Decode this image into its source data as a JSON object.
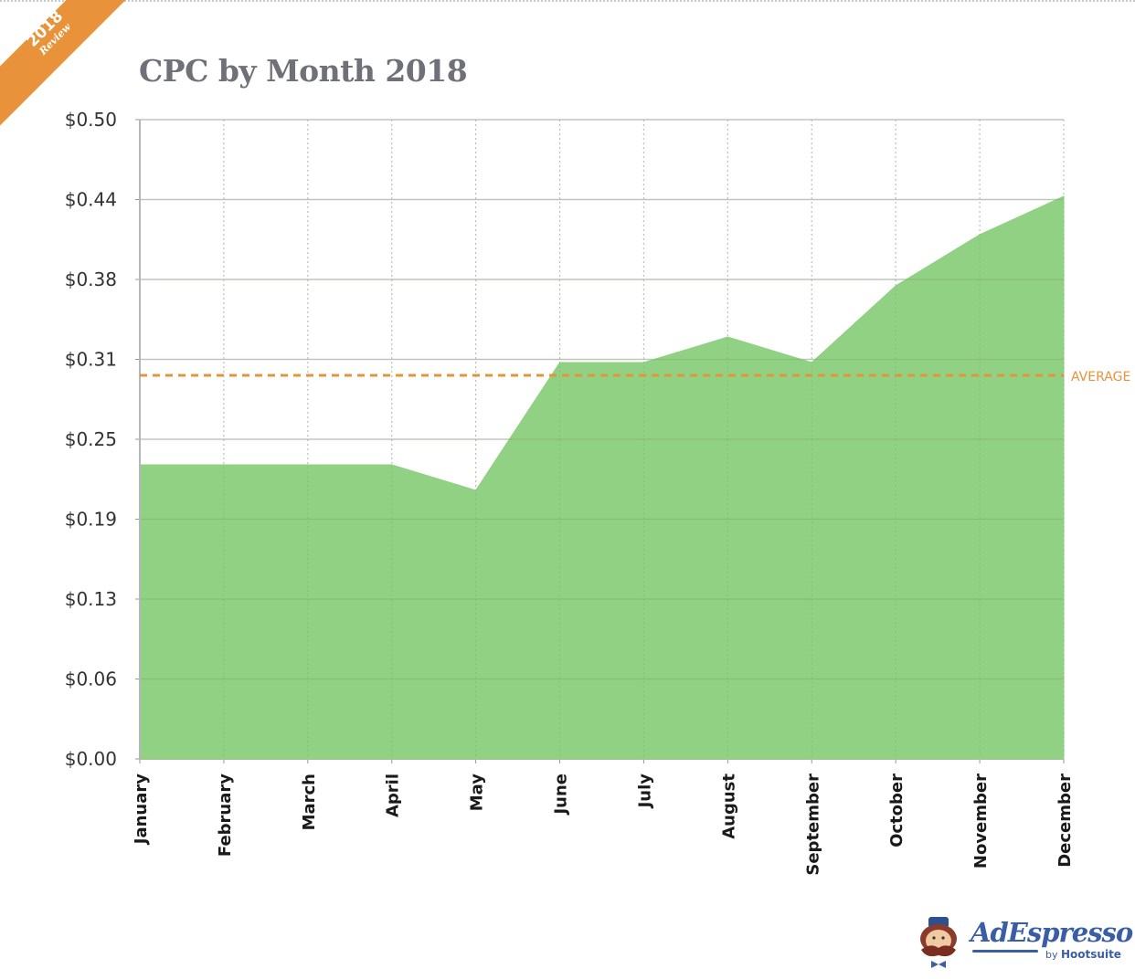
{
  "badge": {
    "year": "2018",
    "subtitle": "Review",
    "color": "#e8933a"
  },
  "brand": {
    "name": "AdEspresso",
    "by": "by",
    "parent": "Hootsuite",
    "icon": "mustache-mascot-icon",
    "color": "#3a5da8"
  },
  "chart_data": {
    "type": "area",
    "title": "CPC by Month 2018",
    "xlabel": "",
    "ylabel": "",
    "categories": [
      "January",
      "February",
      "March",
      "April",
      "May",
      "June",
      "July",
      "August",
      "September",
      "October",
      "November",
      "December"
    ],
    "series": [
      {
        "name": "CPC",
        "color": "#8dd07f",
        "values": [
          0.23,
          0.23,
          0.23,
          0.23,
          0.21,
          0.31,
          0.31,
          0.33,
          0.31,
          0.37,
          0.41,
          0.44
        ]
      }
    ],
    "ylim": [
      0,
      0.5
    ],
    "yticks": [
      0,
      0.0625,
      0.125,
      0.1875,
      0.25,
      0.3125,
      0.375,
      0.4375,
      0.5
    ],
    "ytick_labels": [
      "$0.00",
      "$0.06",
      "$0.13",
      "$0.19",
      "$0.25",
      "$0.31",
      "$0.38",
      "$0.44",
      "$0.50"
    ],
    "reference_lines": [
      {
        "label": "AVERAGE",
        "value": 0.3,
        "color": "#e8933a",
        "style": "dashed"
      }
    ],
    "grid": true,
    "legend": "none"
  }
}
